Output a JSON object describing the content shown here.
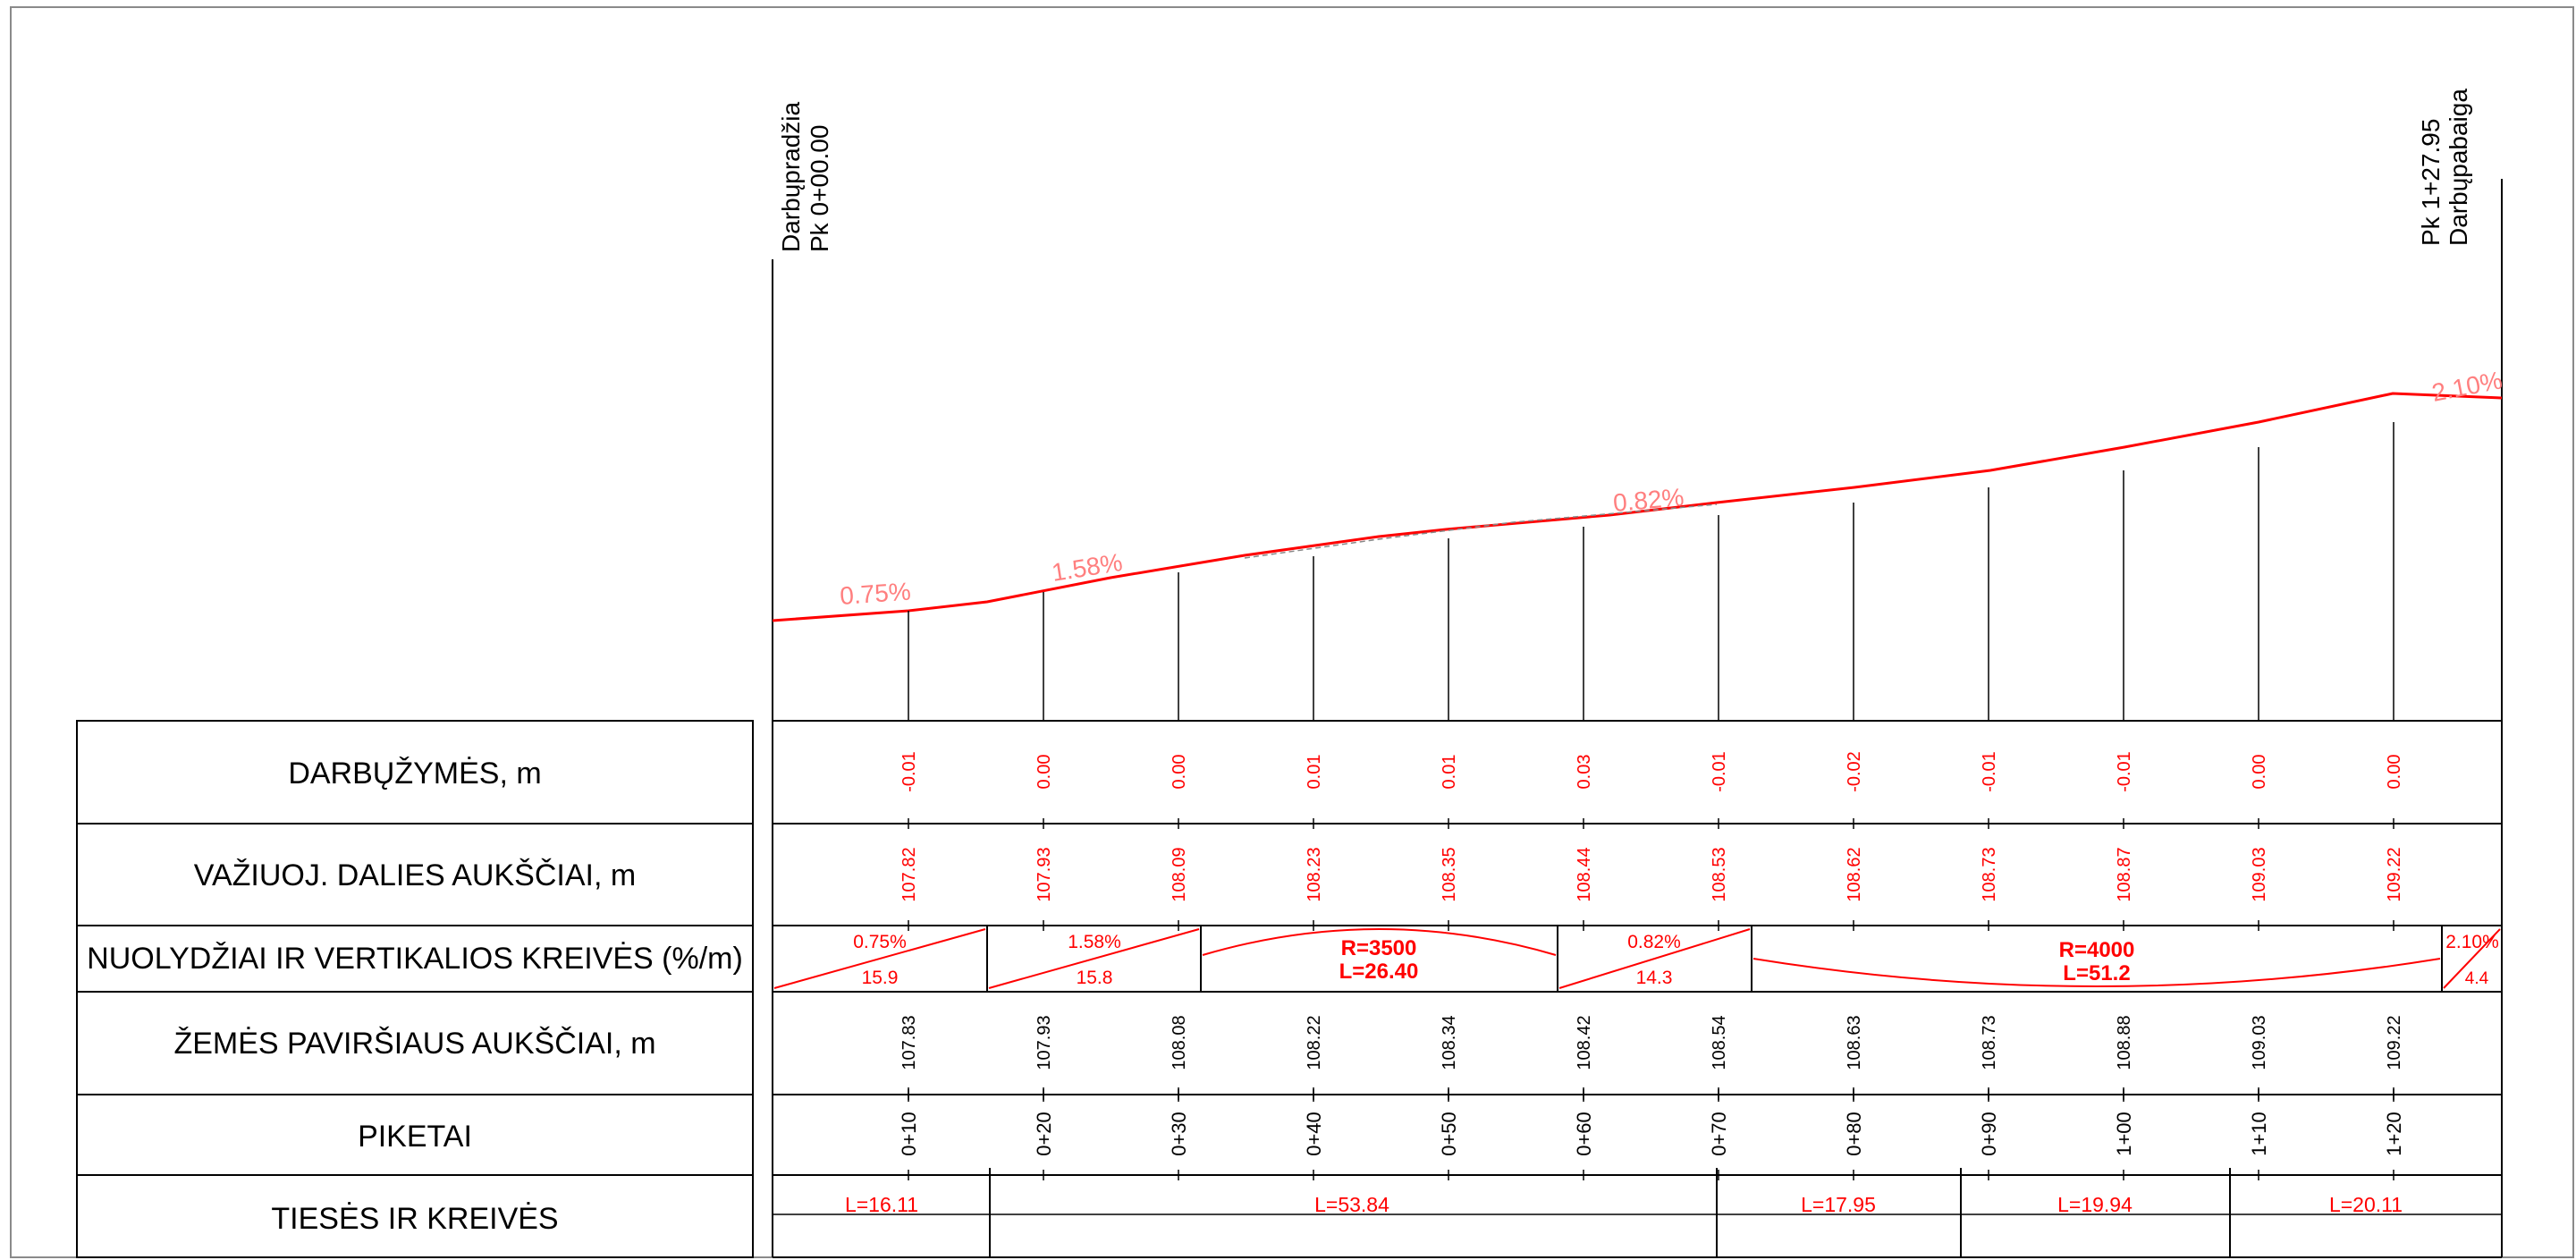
{
  "header": {
    "start": {
      "line1": "Darbųpradžia",
      "line2": "Pk 0+00.00"
    },
    "end": {
      "line1": "Pk 1+27.95",
      "line2": "Darbųpabaiga"
    }
  },
  "row_labels": {
    "work_marks": "DARBŲŽYMĖS, m",
    "road_elev": "VAŽIUOJ. DALIES AUKŠČIAI, m",
    "slopes": "NUOLYDŽIAI IR VERTIKALIOS KREIVĖS (%/m)",
    "ground_elev": "ŽEMĖS PAVIRŠIAUS AUKŠČIAI, m",
    "pickets": "PIKETAI",
    "alignment": "TIESĖS IR KREIVĖS"
  },
  "stations": [
    {
      "picket": "0+10",
      "work_mark": "-0.01",
      "road_elev": "107.82",
      "ground_elev": "107.83"
    },
    {
      "picket": "0+20",
      "work_mark": "0.00",
      "road_elev": "107.93",
      "ground_elev": "107.93"
    },
    {
      "picket": "0+30",
      "work_mark": "0.00",
      "road_elev": "108.09",
      "ground_elev": "108.08"
    },
    {
      "picket": "0+40",
      "work_mark": "0.01",
      "road_elev": "108.23",
      "ground_elev": "108.22"
    },
    {
      "picket": "0+50",
      "work_mark": "0.01",
      "road_elev": "108.35",
      "ground_elev": "108.34"
    },
    {
      "picket": "0+60",
      "work_mark": "0.03",
      "road_elev": "108.44",
      "ground_elev": "108.42"
    },
    {
      "picket": "0+70",
      "work_mark": "-0.01",
      "road_elev": "108.53",
      "ground_elev": "108.54"
    },
    {
      "picket": "0+80",
      "work_mark": "-0.02",
      "road_elev": "108.62",
      "ground_elev": "108.63"
    },
    {
      "picket": "0+90",
      "work_mark": "-0.01",
      "road_elev": "108.73",
      "ground_elev": "108.73"
    },
    {
      "picket": "1+00",
      "work_mark": "-0.01",
      "road_elev": "108.87",
      "ground_elev": "108.88"
    },
    {
      "picket": "1+10",
      "work_mark": "0.00",
      "road_elev": "109.03",
      "ground_elev": "109.03"
    },
    {
      "picket": "1+20",
      "work_mark": "0.00",
      "road_elev": "109.22",
      "ground_elev": "109.22"
    }
  ],
  "profile_grade_labels": [
    "0.75%",
    "1.58%",
    "0.82%",
    "2.10%"
  ],
  "slope_segments": [
    {
      "type": "grade",
      "grade": "0.75%",
      "length": "15.9"
    },
    {
      "type": "grade",
      "grade": "1.58%",
      "length": "15.8"
    },
    {
      "type": "curve",
      "radius": "R=3500",
      "length": "L=26.40"
    },
    {
      "type": "grade",
      "grade": "0.82%",
      "length": "14.3"
    },
    {
      "type": "curve",
      "radius": "R=4000",
      "length": "L=51.2"
    },
    {
      "type": "grade",
      "grade": "2.10%",
      "length": "4.4"
    }
  ],
  "alignment_segments": [
    "L=16.11",
    "L=53.84",
    "L=17.95",
    "L=19.94",
    "L=20.11"
  ],
  "colors": {
    "design": "#ff0000",
    "grade_label": "#ff7f7f",
    "line": "#000000"
  }
}
